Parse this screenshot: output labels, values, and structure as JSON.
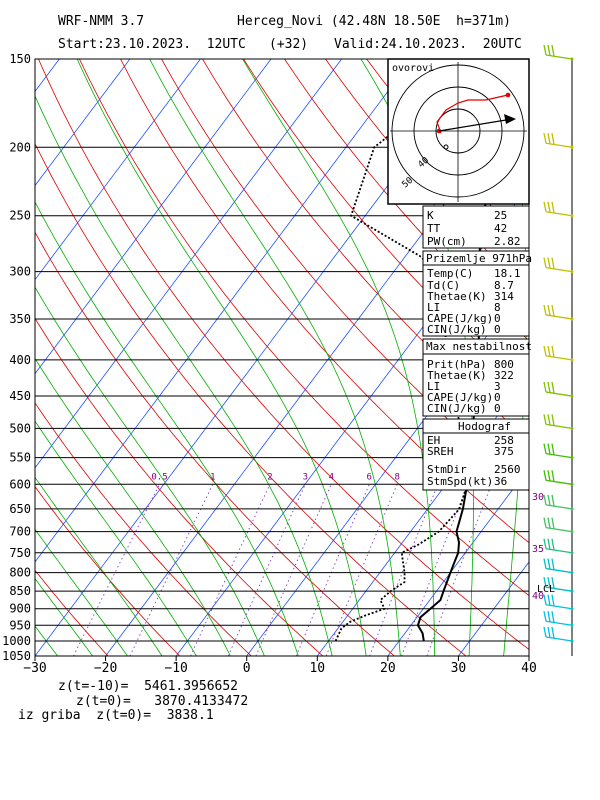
{
  "header": {
    "model": "WRF-NMM 3.7",
    "station": "Herceg_Novi (42.48N 18.50E  h=371m)",
    "start": "Start:23.10.2023.  12UTC",
    "offset": "(+32)",
    "valid": "Valid:24.10.2023.  20UTC"
  },
  "chart_data": {
    "type": "line",
    "xlim": [
      -30,
      40
    ],
    "ylim": [
      1050,
      150
    ],
    "y_scale": "log",
    "x_ticks": [
      "-30",
      "-20",
      "-10",
      "0",
      "10",
      "20",
      "30",
      "40"
    ],
    "pressure_levels": [
      "150",
      "200",
      "250",
      "300",
      "350",
      "400",
      "450",
      "500",
      "550",
      "600",
      "650",
      "700",
      "750",
      "800",
      "850",
      "900",
      "950",
      "1000",
      "1050"
    ],
    "series": [
      {
        "color": "#000000",
        "style": "solid",
        "points": [
          [
            23.5,
            1000
          ],
          [
            22.5,
            975
          ],
          [
            21,
            950
          ],
          [
            20.5,
            925
          ],
          [
            21,
            900
          ],
          [
            21.5,
            875
          ],
          [
            21,
            850
          ],
          [
            20,
            800
          ],
          [
            19.5,
            775
          ],
          [
            19,
            750
          ],
          [
            18,
            725
          ],
          [
            16.5,
            700
          ],
          [
            15,
            650
          ],
          [
            13,
            600
          ],
          [
            10.5,
            550
          ],
          [
            8,
            500
          ],
          [
            4.5,
            450
          ],
          [
            1.5,
            400
          ],
          [
            -3,
            350
          ],
          [
            -8,
            300
          ],
          [
            -13.5,
            250
          ],
          [
            -17.5,
            200
          ],
          [
            -16.5,
            180
          ],
          [
            -13.5,
            160
          ],
          [
            -12,
            150
          ]
        ]
      },
      {
        "color": "#000000",
        "style": "dotted",
        "points": [
          [
            11,
            1000
          ],
          [
            10.5,
            960
          ],
          [
            11,
            940
          ],
          [
            12.5,
            920
          ],
          [
            14.5,
            900
          ],
          [
            13,
            875
          ],
          [
            13.5,
            850
          ],
          [
            14.5,
            825
          ],
          [
            13.5,
            800
          ],
          [
            12,
            770
          ],
          [
            11,
            750
          ],
          [
            12.5,
            730
          ],
          [
            14,
            700
          ],
          [
            14.5,
            650
          ],
          [
            13,
            600
          ],
          [
            10,
            550
          ],
          [
            6,
            500
          ],
          [
            2,
            450
          ],
          [
            -3.5,
            400
          ],
          [
            -7.5,
            350
          ],
          [
            -11.5,
            320
          ],
          [
            -14,
            300
          ],
          [
            -18,
            285
          ],
          [
            -32,
            250
          ],
          [
            -36,
            200
          ],
          [
            -33,
            175
          ],
          [
            -30,
            155
          ],
          [
            -29.5,
            150
          ]
        ]
      }
    ],
    "mixing_ratio_labels": [
      "0.5",
      "1",
      "2",
      "3",
      "4",
      "6",
      "8"
    ]
  },
  "hodograph": {
    "title": "ovorovi",
    "ring_labels": [
      "40",
      "50"
    ]
  },
  "indices": {
    "rows": [
      {
        "k": "K",
        "v": "25"
      },
      {
        "k": "TT",
        "v": "42"
      },
      {
        "k": "PW(cm)",
        "v": "2.82"
      }
    ]
  },
  "surface": {
    "title": "Prizemlje 971hPa",
    "rows": [
      {
        "k": "Temp(C)",
        "v": "18.1"
      },
      {
        "k": "Td(C)",
        "v": "8.7"
      },
      {
        "k": "Thetae(K)",
        "v": "314"
      },
      {
        "k": "LI",
        "v": "8"
      },
      {
        "k": "CAPE(J/kg)",
        "v": "0"
      },
      {
        "k": "CIN(J/kg)",
        "v": "0"
      }
    ]
  },
  "max_instability": {
    "title": "Max nestabilnost",
    "rows": [
      {
        "k": "Prit(hPa)",
        "v": "800"
      },
      {
        "k": "Thetae(K)",
        "v": "322"
      },
      {
        "k": "LI",
        "v": "3"
      },
      {
        "k": "CAPE(J/kg)",
        "v": "0"
      },
      {
        "k": "CIN(J/kg)",
        "v": "0"
      }
    ]
  },
  "hodograf": {
    "title": "Hodograf",
    "rows": [
      {
        "k": "EH",
        "v": "258"
      },
      {
        "k": "SREH",
        "v": "375"
      },
      {
        "k": "StmDir",
        "v": "2560"
      },
      {
        "k": "StmSpd(kt)",
        "v": "36"
      }
    ]
  },
  "wind_labels": {
    "lcl": "LCL",
    "speeds": [
      "30",
      "35",
      "40"
    ]
  },
  "footer": {
    "line1": "z(t=-10)=  5461.3956652",
    "line2": "z(t=0)=   3870.4133472",
    "line3": "iz griba  z(t=0)=  3838.1"
  }
}
